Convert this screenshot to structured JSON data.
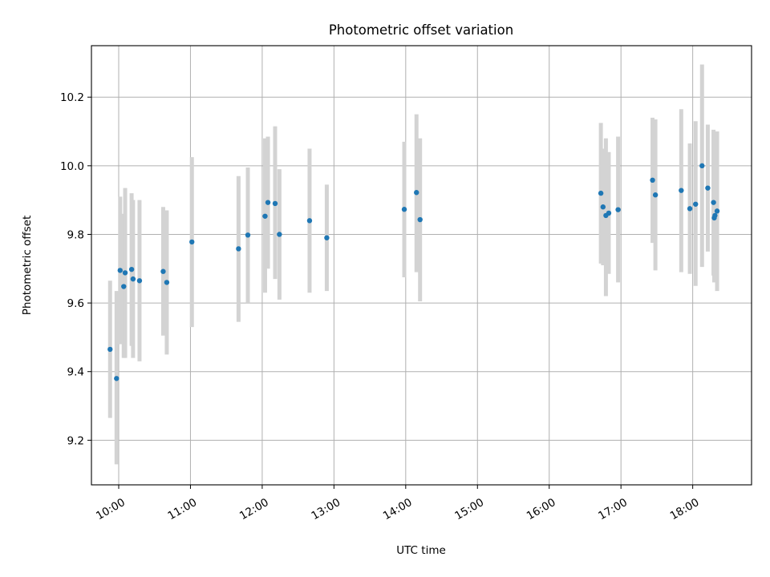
{
  "chart_data": {
    "type": "scatter",
    "title": "Photometric offset variation",
    "xlabel": "UTC time",
    "ylabel": "Photometric offset",
    "x_ticks": [
      "10:00",
      "11:00",
      "12:00",
      "13:00",
      "14:00",
      "15:00",
      "16:00",
      "17:00",
      "18:00"
    ],
    "x_tick_hours": [
      10,
      11,
      12,
      13,
      14,
      15,
      16,
      17,
      18
    ],
    "y_ticks": [
      "9.2",
      "9.4",
      "9.6",
      "9.8",
      "10.0",
      "10.2"
    ],
    "y_tick_values": [
      9.2,
      9.4,
      9.6,
      9.8,
      10.0,
      10.2
    ],
    "xlim_hours": [
      9.62,
      18.82
    ],
    "ylim": [
      9.07,
      10.35
    ],
    "grid": true,
    "error_bar_color": "#d3d3d3",
    "point_color": "#1f77b4",
    "points": [
      {
        "t": 9.88,
        "y": 9.465,
        "lo": 9.265,
        "hi": 9.665
      },
      {
        "t": 9.97,
        "y": 9.38,
        "lo": 9.13,
        "hi": 9.635
      },
      {
        "t": 10.02,
        "y": 9.695,
        "lo": 9.48,
        "hi": 9.91
      },
      {
        "t": 10.07,
        "y": 9.648,
        "lo": 9.44,
        "hi": 9.86
      },
      {
        "t": 10.09,
        "y": 9.688,
        "lo": 9.44,
        "hi": 9.935
      },
      {
        "t": 10.18,
        "y": 9.698,
        "lo": 9.475,
        "hi": 9.92
      },
      {
        "t": 10.2,
        "y": 9.67,
        "lo": 9.44,
        "hi": 9.9
      },
      {
        "t": 10.29,
        "y": 9.665,
        "lo": 9.43,
        "hi": 9.9
      },
      {
        "t": 10.62,
        "y": 9.692,
        "lo": 9.505,
        "hi": 9.88
      },
      {
        "t": 10.67,
        "y": 9.66,
        "lo": 9.45,
        "hi": 9.87
      },
      {
        "t": 11.02,
        "y": 9.778,
        "lo": 9.53,
        "hi": 10.025
      },
      {
        "t": 11.67,
        "y": 9.758,
        "lo": 9.545,
        "hi": 9.97
      },
      {
        "t": 11.8,
        "y": 9.798,
        "lo": 9.6,
        "hi": 9.995
      },
      {
        "t": 12.04,
        "y": 9.853,
        "lo": 9.63,
        "hi": 10.08
      },
      {
        "t": 12.08,
        "y": 9.893,
        "lo": 9.7,
        "hi": 10.085
      },
      {
        "t": 12.18,
        "y": 9.89,
        "lo": 9.67,
        "hi": 10.115
      },
      {
        "t": 12.24,
        "y": 9.8,
        "lo": 9.61,
        "hi": 9.99
      },
      {
        "t": 12.66,
        "y": 9.84,
        "lo": 9.63,
        "hi": 10.05
      },
      {
        "t": 12.9,
        "y": 9.79,
        "lo": 9.635,
        "hi": 9.945
      },
      {
        "t": 13.98,
        "y": 9.873,
        "lo": 9.675,
        "hi": 10.07
      },
      {
        "t": 14.15,
        "y": 9.922,
        "lo": 9.69,
        "hi": 10.15
      },
      {
        "t": 14.2,
        "y": 9.843,
        "lo": 9.605,
        "hi": 10.08
      },
      {
        "t": 16.72,
        "y": 9.92,
        "lo": 9.715,
        "hi": 10.125
      },
      {
        "t": 16.75,
        "y": 9.88,
        "lo": 9.71,
        "hi": 10.05
      },
      {
        "t": 16.79,
        "y": 9.855,
        "lo": 9.62,
        "hi": 10.08
      },
      {
        "t": 16.83,
        "y": 9.862,
        "lo": 9.685,
        "hi": 10.04
      },
      {
        "t": 16.96,
        "y": 9.872,
        "lo": 9.66,
        "hi": 10.085
      },
      {
        "t": 17.44,
        "y": 9.958,
        "lo": 9.775,
        "hi": 10.14
      },
      {
        "t": 17.48,
        "y": 9.915,
        "lo": 9.695,
        "hi": 10.135
      },
      {
        "t": 17.84,
        "y": 9.928,
        "lo": 9.69,
        "hi": 10.165
      },
      {
        "t": 17.96,
        "y": 9.875,
        "lo": 9.685,
        "hi": 10.065
      },
      {
        "t": 18.04,
        "y": 9.888,
        "lo": 9.65,
        "hi": 10.13
      },
      {
        "t": 18.13,
        "y": 10.0,
        "lo": 9.705,
        "hi": 10.295
      },
      {
        "t": 18.21,
        "y": 9.935,
        "lo": 9.75,
        "hi": 10.12
      },
      {
        "t": 18.29,
        "y": 9.893,
        "lo": 9.68,
        "hi": 10.105
      },
      {
        "t": 18.3,
        "y": 9.848,
        "lo": 9.66,
        "hi": 10.1
      },
      {
        "t": 18.31,
        "y": 9.855,
        "lo": 9.665,
        "hi": 10.04
      },
      {
        "t": 18.34,
        "y": 9.868,
        "lo": 9.635,
        "hi": 10.1
      }
    ]
  }
}
